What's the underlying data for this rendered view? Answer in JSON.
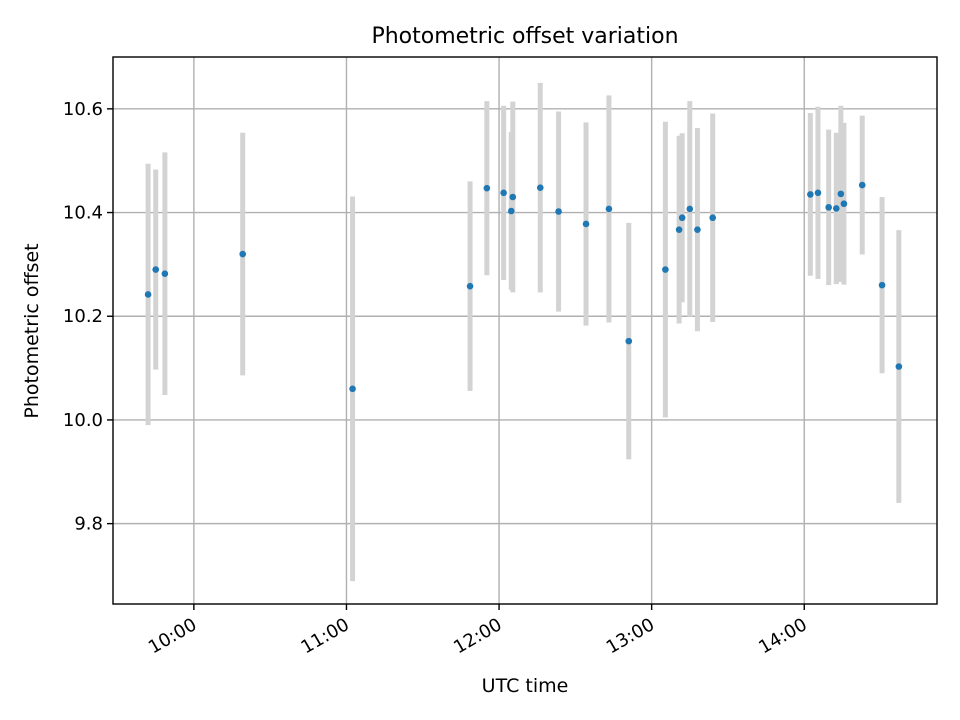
{
  "chart_data": {
    "type": "scatter",
    "title": "Photometric offset variation",
    "xlabel": "UTC time",
    "ylabel": "Photometric offset",
    "x_unit": "hours (UTC)",
    "xlim": [
      9.47,
      14.87
    ],
    "ylim": [
      9.645,
      10.7
    ],
    "x_ticks": [
      {
        "value": 10,
        "label": "10:00"
      },
      {
        "value": 11,
        "label": "11:00"
      },
      {
        "value": 12,
        "label": "12:00"
      },
      {
        "value": 13,
        "label": "13:00"
      },
      {
        "value": 14,
        "label": "14:00"
      }
    ],
    "y_ticks": [
      {
        "value": 9.8,
        "label": "9.8"
      },
      {
        "value": 10.0,
        "label": "10.0"
      },
      {
        "value": 10.2,
        "label": "10.2"
      },
      {
        "value": 10.4,
        "label": "10.4"
      },
      {
        "value": 10.6,
        "label": "10.6"
      }
    ],
    "grid": true,
    "tick_label_rotation": 30,
    "marker_color": "#1f77b4",
    "errorbar_color": "#d3d3d3",
    "series": [
      {
        "points": [
          {
            "time": "09:42",
            "x": 9.7,
            "y": 10.242,
            "err": 0.252
          },
          {
            "time": "09:45",
            "x": 9.75,
            "y": 10.29,
            "err": 0.193
          },
          {
            "time": "09:49",
            "x": 9.81,
            "y": 10.282,
            "err": 0.234
          },
          {
            "time": "10:19",
            "x": 10.32,
            "y": 10.32,
            "err": 0.234
          },
          {
            "time": "11:02",
            "x": 11.04,
            "y": 10.06,
            "err": 0.371
          },
          {
            "time": "11:49",
            "x": 11.81,
            "y": 10.258,
            "err": 0.202
          },
          {
            "time": "11:55",
            "x": 11.92,
            "y": 10.447,
            "err": 0.168
          },
          {
            "time": "12:01",
            "x": 12.03,
            "y": 10.438,
            "err": 0.168
          },
          {
            "time": "12:05",
            "x": 12.08,
            "y": 10.403,
            "err": 0.152
          },
          {
            "time": "12:05",
            "x": 12.09,
            "y": 10.43,
            "err": 0.184
          },
          {
            "time": "12:16",
            "x": 12.27,
            "y": 10.448,
            "err": 0.202
          },
          {
            "time": "12:23",
            "x": 12.39,
            "y": 10.402,
            "err": 0.193
          },
          {
            "time": "12:34",
            "x": 12.57,
            "y": 10.378,
            "err": 0.196
          },
          {
            "time": "12:43",
            "x": 12.72,
            "y": 10.407,
            "err": 0.219
          },
          {
            "time": "12:51",
            "x": 12.85,
            "y": 10.152,
            "err": 0.228
          },
          {
            "time": "13:05",
            "x": 13.09,
            "y": 10.29,
            "err": 0.285
          },
          {
            "time": "13:10",
            "x": 13.18,
            "y": 10.367,
            "err": 0.181
          },
          {
            "time": "13:12",
            "x": 13.2,
            "y": 10.39,
            "err": 0.163
          },
          {
            "time": "13:15",
            "x": 13.25,
            "y": 10.407,
            "err": 0.208
          },
          {
            "time": "13:18",
            "x": 13.3,
            "y": 10.367,
            "err": 0.196
          },
          {
            "time": "13:24",
            "x": 13.4,
            "y": 10.39,
            "err": 0.201
          },
          {
            "time": "14:02",
            "x": 14.04,
            "y": 10.435,
            "err": 0.157
          },
          {
            "time": "14:05",
            "x": 14.09,
            "y": 10.438,
            "err": 0.166
          },
          {
            "time": "14:09",
            "x": 14.16,
            "y": 10.41,
            "err": 0.15
          },
          {
            "time": "14:12",
            "x": 14.21,
            "y": 10.408,
            "err": 0.146
          },
          {
            "time": "14:14",
            "x": 14.24,
            "y": 10.436,
            "err": 0.17
          },
          {
            "time": "14:15",
            "x": 14.26,
            "y": 10.417,
            "err": 0.156
          },
          {
            "time": "14:23",
            "x": 14.38,
            "y": 10.453,
            "err": 0.134
          },
          {
            "time": "14:31",
            "x": 14.51,
            "y": 10.26,
            "err": 0.17
          },
          {
            "time": "14:37",
            "x": 14.62,
            "y": 10.103,
            "err": 0.263
          }
        ]
      }
    ]
  }
}
